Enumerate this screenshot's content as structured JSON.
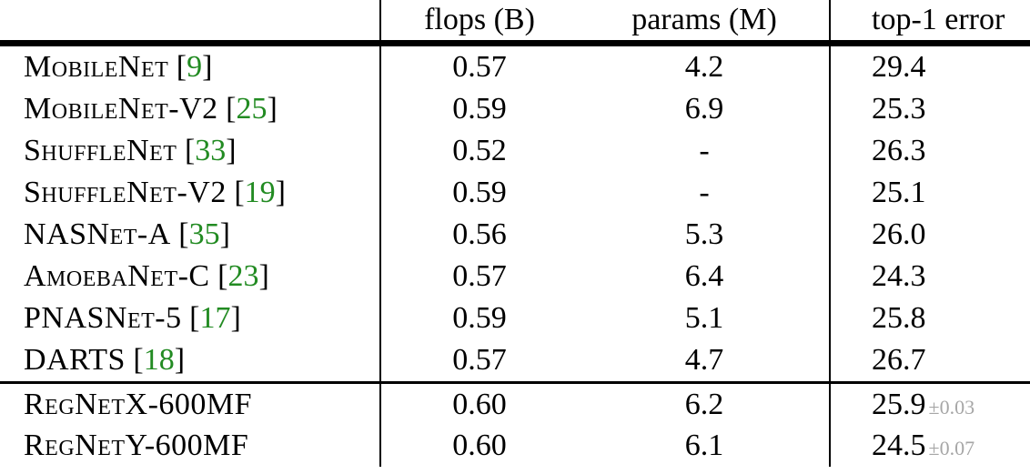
{
  "table": {
    "columns": [
      "flops (B)",
      "params (M)",
      "top-1 error"
    ],
    "cite_open": "[",
    "cite_close": "]",
    "baseline_rows": [
      {
        "name": "MobileNet",
        "cite": "9",
        "flops": "0.57",
        "params": "4.2",
        "error": "29.4",
        "std": ""
      },
      {
        "name": "MobileNet-V2",
        "cite": "25",
        "flops": "0.59",
        "params": "6.9",
        "error": "25.3",
        "std": ""
      },
      {
        "name": "ShuffleNet",
        "cite": "33",
        "flops": "0.52",
        "params": "-",
        "error": "26.3",
        "std": ""
      },
      {
        "name": "ShuffleNet-V2",
        "cite": "19",
        "flops": "0.59",
        "params": "-",
        "error": "25.1",
        "std": ""
      },
      {
        "name": "NASNet-A",
        "cite": "35",
        "flops": "0.56",
        "params": "5.3",
        "error": "26.0",
        "std": ""
      },
      {
        "name": "AmoebaNet-C",
        "cite": "23",
        "flops": "0.57",
        "params": "6.4",
        "error": "24.3",
        "std": ""
      },
      {
        "name": "PNASNet-5",
        "cite": "17",
        "flops": "0.59",
        "params": "5.1",
        "error": "25.8",
        "std": ""
      },
      {
        "name": "DARTS",
        "cite": "18",
        "flops": "0.57",
        "params": "4.7",
        "error": "26.7",
        "std": ""
      }
    ],
    "regnet_rows": [
      {
        "name": "RegNetX-600MF",
        "cite": null,
        "flops": "0.60",
        "params": "6.2",
        "error": "25.9",
        "std": "±0.03"
      },
      {
        "name": "RegNetY-600MF",
        "cite": null,
        "flops": "0.60",
        "params": "6.1",
        "error": "24.5",
        "std": "±0.07"
      }
    ],
    "colors": {
      "text": "#000000",
      "citation_green": "#228B22",
      "std_gray": "#a6a6a6"
    }
  }
}
